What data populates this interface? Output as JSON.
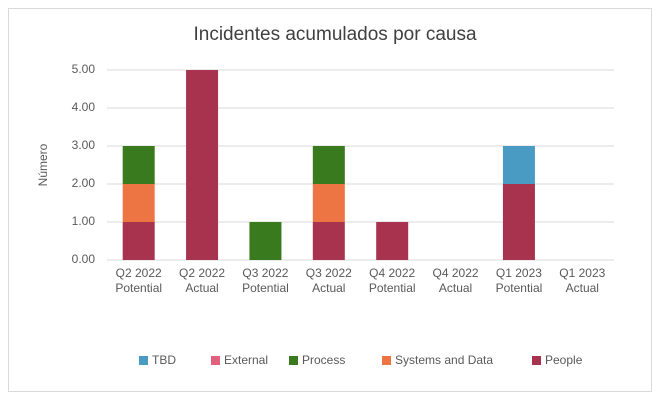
{
  "chart_data": {
    "type": "bar",
    "stacked": true,
    "title": "Incidentes acumulados por causa",
    "y_label": "Número",
    "categories": [
      [
        "Q2 2022",
        "Potential"
      ],
      [
        "Q2 2022",
        "Actual"
      ],
      [
        "Q3 2022",
        "Potential"
      ],
      [
        "Q3 2022",
        "Actual"
      ],
      [
        "Q4 2022",
        "Potential"
      ],
      [
        "Q4 2022",
        "Actual"
      ],
      [
        "Q1 2023",
        "Potential"
      ],
      [
        "Q1 2023",
        "Actual"
      ]
    ],
    "series": [
      {
        "name": "TBD",
        "color": "#4a9bc4",
        "values": [
          0,
          0,
          0,
          0,
          0,
          0,
          1,
          0
        ]
      },
      {
        "name": "External",
        "color": "#e0607e",
        "values": [
          0,
          0,
          0,
          0,
          0,
          0,
          0,
          0
        ]
      },
      {
        "name": "Process",
        "color": "#3a7a1e",
        "values": [
          1,
          0,
          1,
          1,
          0,
          0,
          0,
          0
        ]
      },
      {
        "name": "Systems and Data",
        "color": "#ed7443",
        "values": [
          1,
          0,
          0,
          1,
          0,
          0,
          0,
          0
        ]
      },
      {
        "name": "People",
        "color": "#a8334f",
        "values": [
          1,
          5,
          0,
          1,
          1,
          0,
          2,
          0
        ]
      }
    ],
    "ylim": [
      0,
      5
    ],
    "yticks": [
      {
        "value": 0,
        "label": "0.00"
      },
      {
        "value": 1,
        "label": "1.00"
      },
      {
        "value": 2,
        "label": "2.00"
      },
      {
        "value": 3,
        "label": "3.00"
      },
      {
        "value": 4,
        "label": "4.00"
      },
      {
        "value": 5,
        "label": "5.00"
      }
    ],
    "grid": true,
    "legend": "bottom"
  }
}
